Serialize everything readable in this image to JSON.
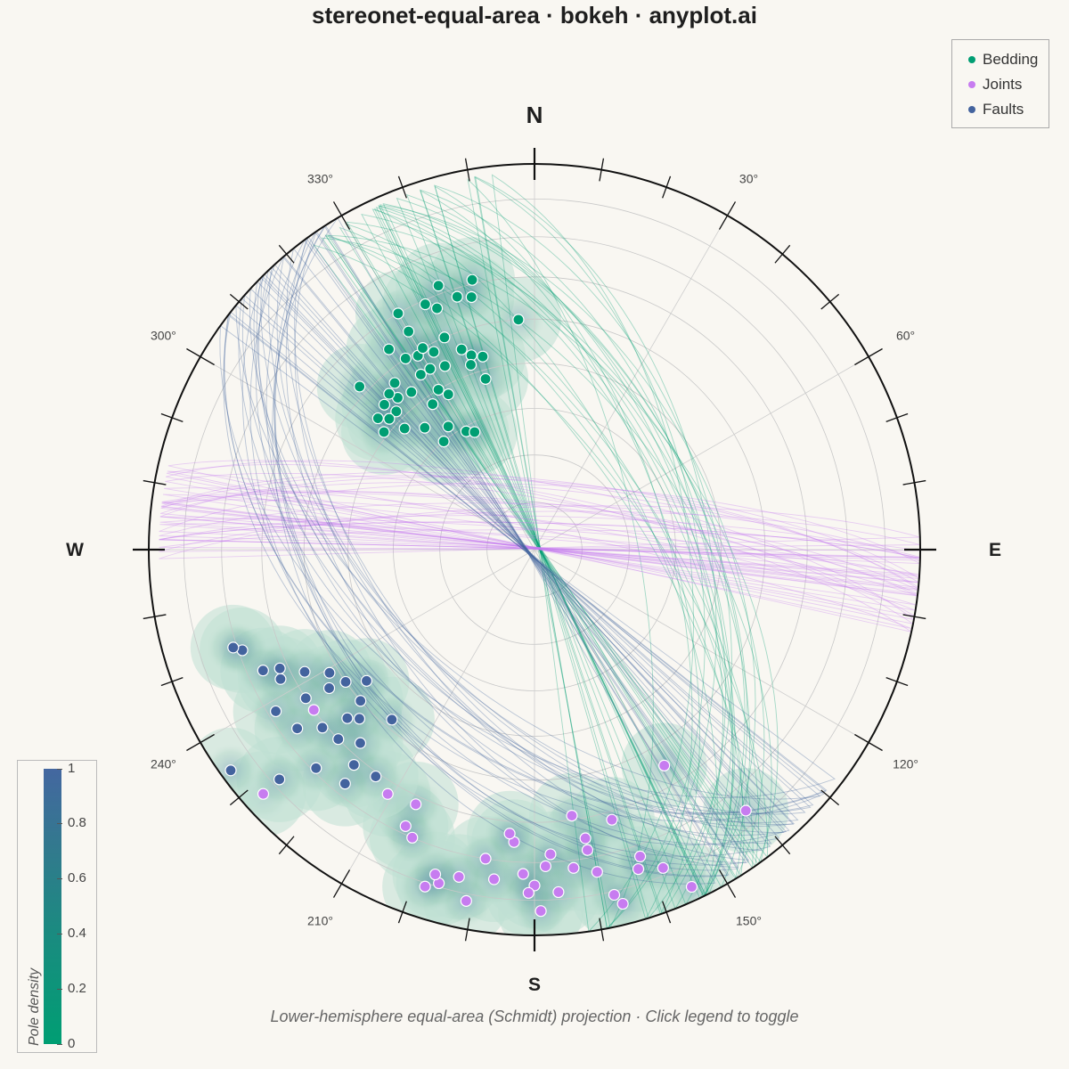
{
  "title": "stereonet-equal-area · bokeh · anyplot.ai",
  "subtitle": "Lower-hemisphere equal-area (Schmidt) projection · Click legend to toggle",
  "colors": {
    "Bedding": "#009e73",
    "Joints": "#c77cf0",
    "Faults": "#43639e",
    "background": "#f9f7f2"
  },
  "legend": {
    "items": [
      "Bedding",
      "Joints",
      "Faults"
    ],
    "placement": "top-right"
  },
  "compass": {
    "N": "N",
    "E": "E",
    "S": "S",
    "W": "W"
  },
  "azimuth_labels": [
    "30°",
    "60°",
    "120°",
    "150°",
    "210°",
    "240°",
    "300°",
    "330°"
  ],
  "colorbar": {
    "label": "Pole density",
    "ticks": [
      "0",
      "0.2",
      "0.4",
      "0.6",
      "0.8",
      "1"
    ],
    "range": [
      0,
      1
    ]
  },
  "chart_data": {
    "type": "scatter",
    "projection": "equal-area stereonet (lower hemisphere)",
    "series": [
      {
        "name": "Bedding",
        "points_trend_plunge": [
          [
            325,
            58
          ],
          [
            320,
            60
          ],
          [
            330,
            61
          ],
          [
            333,
            62
          ],
          [
            318,
            55
          ],
          [
            325,
            52
          ],
          [
            329,
            50
          ],
          [
            331,
            52
          ],
          [
            322,
            47
          ],
          [
            315,
            48
          ],
          [
            318,
            46
          ],
          [
            312,
            48
          ],
          [
            334,
            46
          ],
          [
            330,
            45
          ],
          [
            327,
            45
          ],
          [
            333,
            42
          ],
          [
            329,
            41
          ],
          [
            317,
            44
          ],
          [
            310,
            46
          ],
          [
            314,
            45
          ],
          [
            320,
            43
          ],
          [
            326,
            40
          ],
          [
            331,
            40
          ],
          [
            337,
            40
          ],
          [
            340,
            44
          ],
          [
            342,
            46
          ],
          [
            341,
            48
          ],
          [
            345,
            47
          ],
          [
            338,
            33
          ],
          [
            336,
            31
          ],
          [
            343,
            32
          ],
          [
            308,
            49
          ],
          [
            313,
            38
          ],
          [
            324,
            36
          ],
          [
            330,
            35
          ],
          [
            346,
            33
          ],
          [
            340,
            28
          ],
          [
            330,
            30
          ],
          [
            347,
            29
          ],
          [
            313,
            52
          ],
          [
            344,
            52
          ],
          [
            356,
            40
          ]
        ]
      },
      {
        "name": "Joints",
        "points_trend_plunge": [
          [
            180,
            14
          ],
          [
            187,
            15
          ],
          [
            193,
            14
          ],
          [
            178,
            19
          ],
          [
            177,
            22
          ],
          [
            189,
            20
          ],
          [
            182,
            17
          ],
          [
            176,
            12
          ],
          [
            170,
            22
          ],
          [
            173,
            18
          ],
          [
            169,
            16
          ],
          [
            167,
            9
          ],
          [
            162,
            14
          ],
          [
            158,
            12
          ],
          [
            155,
            4
          ],
          [
            161,
            17
          ],
          [
            172,
            31
          ],
          [
            170,
            25
          ],
          [
            191,
            8
          ],
          [
            196,
            11
          ],
          [
            197,
            13
          ],
          [
            198,
            9
          ],
          [
            203,
            20
          ],
          [
            205,
            22
          ],
          [
            205,
            28
          ],
          [
            211,
            27
          ],
          [
            184,
            25
          ],
          [
            179,
            7
          ],
          [
            149,
            35
          ],
          [
            141,
            14
          ],
          [
            228,
            6
          ],
          [
            234,
            30
          ],
          [
            164,
            28
          ],
          [
            166,
            6
          ],
          [
            185,
            27
          ],
          [
            181,
            12
          ]
        ]
      },
      {
        "name": "Faults",
        "points_trend_plunge": [
          [
            232,
            44
          ],
          [
            235,
            40
          ],
          [
            229,
            40
          ],
          [
            236,
            36
          ],
          [
            239,
            38
          ],
          [
            226,
            37
          ],
          [
            242,
            33
          ],
          [
            237,
            30
          ],
          [
            228,
            35
          ],
          [
            226,
            30
          ],
          [
            222,
            33
          ],
          [
            220,
            28
          ],
          [
            230,
            29
          ],
          [
            243,
            27
          ],
          [
            246,
            24
          ],
          [
            251,
            21
          ],
          [
            238,
            22
          ],
          [
            252,
            19
          ],
          [
            215,
            29
          ],
          [
            219,
            23
          ],
          [
            225,
            21
          ],
          [
            233,
            24
          ],
          [
            245,
            28
          ],
          [
            234,
            3
          ],
          [
            228,
            12
          ],
          [
            220,
            42
          ]
        ]
      }
    ],
    "great_circles": [
      {
        "name": "Bedding",
        "dip_direction_range": [
          232,
          262
        ],
        "dip_range": [
          50,
          70
        ]
      },
      {
        "name": "Joints",
        "dip_direction_range": [
          178,
          195
        ],
        "dip_range": [
          75,
          88
        ]
      },
      {
        "name": "Faults",
        "dip_direction_range": [
          35,
          60
        ],
        "dip_range": [
          40,
          60
        ]
      }
    ],
    "density_contours": true,
    "grid": true
  }
}
